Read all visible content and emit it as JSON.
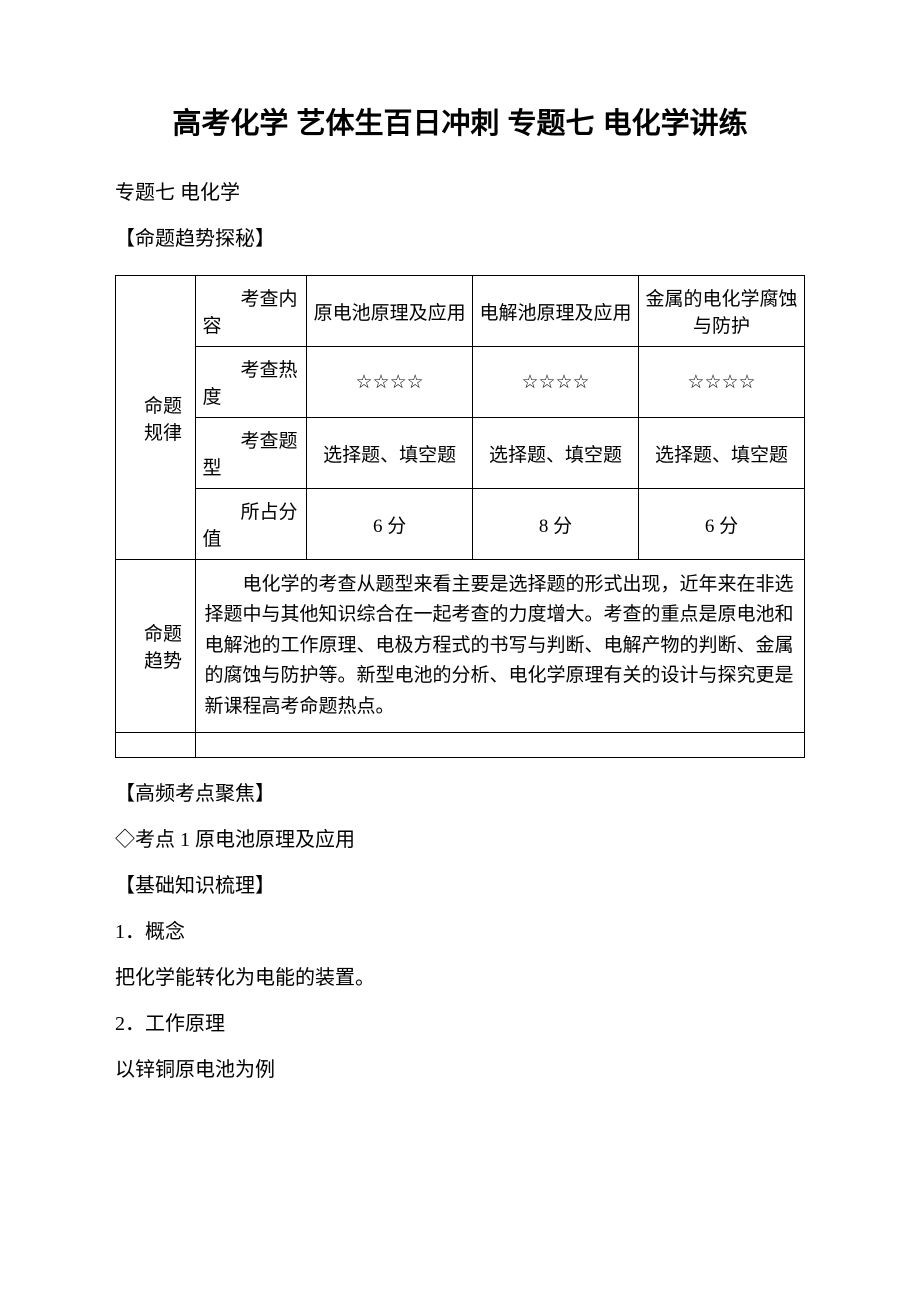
{
  "title": "高考化学 艺体生百日冲刺 专题七 电化学讲练",
  "subtitle": "专题七 电化学",
  "section1_heading": "【命题趋势探秘】",
  "table": {
    "row_label_1": "命题规律",
    "row_label_2": "命题趋势",
    "header_content": "考查内容",
    "header_heat": "考查热度",
    "header_type": "考查题型",
    "header_score": "所占分值",
    "col_headers": [
      "原电池原理及应用",
      "电解池原理及应用",
      "金属的电化学腐蚀与防护"
    ],
    "heat_values": [
      "☆☆☆☆",
      "☆☆☆☆",
      "☆☆☆☆"
    ],
    "type_values": [
      "选择题、填空题",
      "选择题、填空题",
      "选择题、填空题"
    ],
    "score_values": [
      "6 分",
      "8 分",
      "6 分"
    ],
    "trend_text": "电化学的考查从题型来看主要是选择题的形式出现，近年来在非选择题中与其他知识综合在一起考查的力度增大。考查的重点是原电池和电解池的工作原理、电极方程式的书写与判断、电解产物的判断、金属的腐蚀与防护等。新型电池的分析、电化学原理有关的设计与探究更是新课程高考命题热点。"
  },
  "section2_heading": "【高频考点聚焦】",
  "point1": "◇考点 1 原电池原理及应用",
  "section3_heading": "【基础知识梳理】",
  "item1_num": "1．概念",
  "item1_text": "把化学能转化为电能的装置。",
  "item2_num": "2．工作原理",
  "item2_text": "以锌铜原电池为例"
}
